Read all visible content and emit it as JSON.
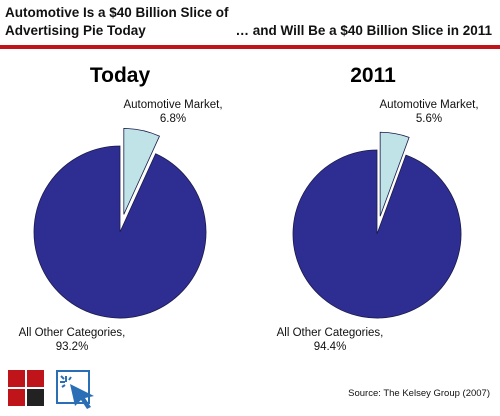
{
  "header": {
    "left_title": "Automotive Is a $40 Billion Slice of Advertising Pie Today",
    "right_title": "… and Will Be a $40 Billion Slice in 2011"
  },
  "chart_data": [
    {
      "type": "pie",
      "title": "Today",
      "slices": [
        {
          "label": "Automotive Market,",
          "value": 6.8,
          "value_label": "6.8%",
          "color": "#bfe3e6",
          "exploded": true
        },
        {
          "label": "All Other Categories,",
          "value": 93.2,
          "value_label": "93.2%",
          "color": "#2e2e92"
        }
      ]
    },
    {
      "type": "pie",
      "title": "2011",
      "slices": [
        {
          "label": "Automotive Market,",
          "value": 5.6,
          "value_label": "5.6%",
          "color": "#bfe3e6",
          "exploded": true
        },
        {
          "label": "All Other Categories,",
          "value": 94.4,
          "value_label": "94.4%",
          "color": "#2e2e92"
        }
      ]
    }
  ],
  "footer": {
    "source": "Source: The Kelsey Group (2007)"
  },
  "icons": {
    "logo_squares": "logo-squares-icon",
    "logo_cursor": "cursor-click-icon"
  },
  "colors": {
    "accent_red": "#c0141b",
    "pie_blue": "#2e2e92",
    "pie_light": "#bfe3e6"
  }
}
